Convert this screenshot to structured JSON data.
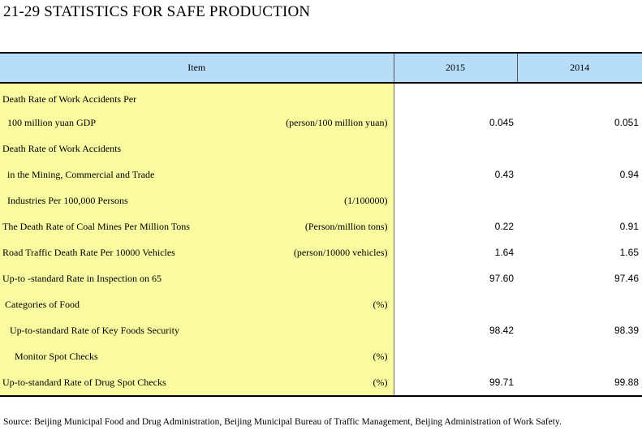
{
  "title": "21-29  STATISTICS FOR SAFE PRODUCTION",
  "header": {
    "item": "Item",
    "col_2015": "2015",
    "col_2014": "2014"
  },
  "rows": [
    {
      "label": "Death Rate of Work Accidents Per",
      "unit": "",
      "v2015": "",
      "v2014": ""
    },
    {
      "label": "  100 million yuan GDP",
      "unit": "(person/100 million yuan)",
      "v2015": "0.045",
      "v2014": "0.051"
    },
    {
      "label": "Death Rate of Work Accidents",
      "unit": "",
      "v2015": "",
      "v2014": ""
    },
    {
      "label": "  in the Mining, Commercial and Trade",
      "unit": "",
      "v2015": "0.43",
      "v2014": "0.94"
    },
    {
      "label": "  Industries Per 100,000 Persons",
      "unit": "(1/100000)",
      "v2015": "",
      "v2014": ""
    },
    {
      "label": "The Death Rate of Coal Mines Per Million Tons",
      "unit": "(Person/million tons)",
      "v2015": "0.22",
      "v2014": "0.91"
    },
    {
      "label": "Road Traffic Death Rate Per 10000 Vehicles",
      "unit": "(person/10000 vehicles)",
      "v2015": "1.64",
      "v2014": "1.65"
    },
    {
      "label": "Up-to -standard Rate in Inspection on 65",
      "unit": "",
      "v2015": "97.60",
      "v2014": "97.46"
    },
    {
      "label": " Categories of Food",
      "unit": "(%)",
      "v2015": "",
      "v2014": ""
    },
    {
      "label": "   Up-to-standard Rate of Key Foods Security",
      "unit": "",
      "v2015": "98.42",
      "v2014": "98.39"
    },
    {
      "label": "     Monitor Spot Checks",
      "unit": "(%)",
      "v2015": "",
      "v2014": ""
    },
    {
      "label": "Up-to-standard Rate of Drug Spot Checks",
      "unit": "(%)",
      "v2015": "99.71",
      "v2014": "99.88"
    }
  ],
  "source": "Source: Beijing Municipal Food and Drug Administration, Beijing Municipal Bureau of Traffic Management, Beijing Administration of Work Safety.",
  "colors": {
    "header_bg": "#b8ddf8",
    "item_bg": "#fafba0"
  }
}
